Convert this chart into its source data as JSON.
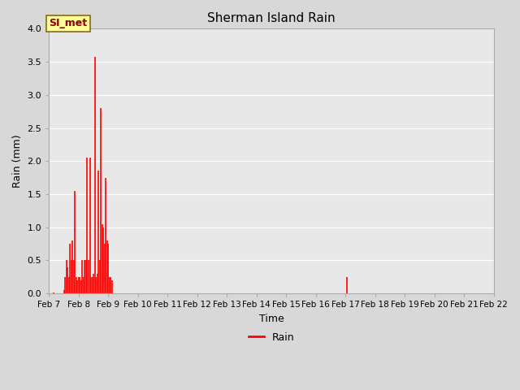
{
  "title": "Sherman Island Rain",
  "xlabel": "Time",
  "ylabel": "Rain (mm)",
  "ylim": [
    0.0,
    4.0
  ],
  "legend_label": "Rain",
  "series_color": "#ff0000",
  "bg_color": "#e0e0e0",
  "plot_bg_color": "#e8e8e8",
  "annotation_label": "SI_met",
  "annotation_color": "#8b0000",
  "annotation_bg": "#ffff99",
  "annotation_border": "#8b6914",
  "x_tick_labels": [
    "Feb 7",
    "Feb 8",
    "Feb 9",
    "Feb 10",
    "Feb 11",
    "Feb 12",
    "Feb 13",
    "Feb 14",
    "Feb 15",
    "Feb 16",
    "Feb 17",
    "Feb 18",
    "Feb 19",
    "Feb 20",
    "Feb 21",
    "Feb 22"
  ],
  "x_tick_positions": [
    0,
    24,
    48,
    72,
    96,
    120,
    144,
    168,
    192,
    216,
    240,
    264,
    288,
    312,
    336,
    360
  ],
  "data": [
    [
      0,
      0.0
    ],
    [
      2,
      0.0
    ],
    [
      4,
      0.02
    ],
    [
      6,
      0.0
    ],
    [
      8,
      0.0
    ],
    [
      10,
      0.0
    ],
    [
      12,
      0.05
    ],
    [
      13,
      0.25
    ],
    [
      14,
      0.5
    ],
    [
      15,
      0.4
    ],
    [
      16,
      0.25
    ],
    [
      17,
      0.75
    ],
    [
      18,
      0.5
    ],
    [
      19,
      0.8
    ],
    [
      20,
      0.5
    ],
    [
      21,
      1.55
    ],
    [
      22,
      0.25
    ],
    [
      23,
      0.2
    ],
    [
      24,
      0.25
    ],
    [
      25,
      0.25
    ],
    [
      26,
      0.2
    ],
    [
      27,
      0.5
    ],
    [
      28,
      0.25
    ],
    [
      29,
      0.5
    ],
    [
      30,
      0.5
    ],
    [
      31,
      2.05
    ],
    [
      32,
      0.5
    ],
    [
      33,
      2.05
    ],
    [
      34,
      0.25
    ],
    [
      35,
      0.25
    ],
    [
      36,
      0.3
    ],
    [
      37,
      3.57
    ],
    [
      38,
      0.25
    ],
    [
      39,
      0.3
    ],
    [
      40,
      1.85
    ],
    [
      41,
      0.5
    ],
    [
      42,
      2.8
    ],
    [
      43,
      1.05
    ],
    [
      44,
      1.0
    ],
    [
      45,
      0.75
    ],
    [
      46,
      1.75
    ],
    [
      47,
      0.8
    ],
    [
      48,
      0.75
    ],
    [
      49,
      0.25
    ],
    [
      50,
      0.25
    ],
    [
      51,
      0.2
    ],
    [
      52,
      0.0
    ],
    [
      53,
      0.0
    ],
    [
      54,
      0.0
    ],
    [
      55,
      0.0
    ],
    [
      56,
      0.0
    ],
    [
      60,
      0.0
    ],
    [
      72,
      0.0
    ],
    [
      241,
      0.25
    ],
    [
      242,
      0.0
    ],
    [
      360,
      0.0
    ]
  ]
}
